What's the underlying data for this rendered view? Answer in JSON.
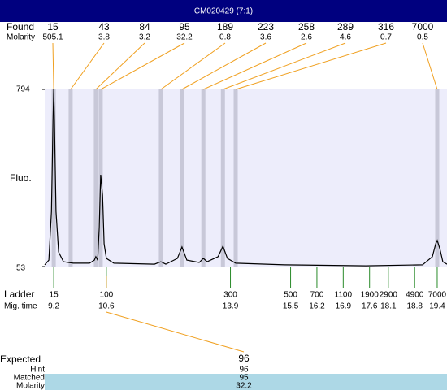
{
  "header": {
    "title": "CM020429 (7:1)"
  },
  "chart_data": {
    "type": "electropherogram",
    "y_label": "Fluo.",
    "xlim": [
      8.96,
      19.66
    ],
    "ylim": [
      53,
      794
    ],
    "yticks": [
      53,
      794
    ],
    "trace": {
      "color": "#000000",
      "x": [
        8.96,
        9.07,
        9.14,
        9.18,
        9.2,
        9.22,
        9.26,
        9.33,
        9.46,
        9.72,
        10.15,
        10.28,
        10.32,
        10.37,
        10.41,
        10.45,
        10.5,
        10.54,
        10.6,
        10.8,
        11.88,
        12.05,
        12.18,
        12.49,
        12.61,
        12.74,
        13.07,
        13.18,
        13.28,
        13.57,
        13.7,
        13.82,
        14.04,
        15.34,
        17.5,
        19.01,
        19.27,
        19.36,
        19.4,
        19.47,
        19.55,
        19.66
      ],
      "y": [
        60,
        80,
        284,
        658,
        794,
        658,
        284,
        114,
        73,
        67,
        67,
        80,
        94,
        80,
        216,
        437,
        352,
        148,
        87,
        67,
        63,
        73,
        63,
        87,
        135,
        80,
        70,
        87,
        73,
        94,
        138,
        87,
        67,
        60,
        56,
        60,
        94,
        148,
        162,
        128,
        73,
        63
      ]
    },
    "found": {
      "label": "Found",
      "molarity_label": "Molarity",
      "sizes": [
        15,
        43,
        84,
        95,
        189,
        223,
        258,
        289,
        316,
        7000
      ],
      "molarity": [
        505.1,
        3.8,
        3.2,
        32.2,
        0.8,
        3.6,
        2.6,
        4.6,
        0.7,
        0.5
      ],
      "times": [
        9.2,
        9.65,
        10.32,
        10.45,
        12.05,
        12.61,
        13.18,
        13.7,
        14.04,
        19.4
      ]
    },
    "ladder": {
      "label": "Ladder",
      "time_label": "Mig. time",
      "sizes": [
        15,
        100,
        300,
        500,
        700,
        1100,
        1900,
        2900,
        4900,
        7000
      ],
      "times": [
        9.2,
        10.6,
        13.9,
        15.5,
        16.2,
        16.9,
        17.6,
        18.1,
        18.8,
        19.4
      ]
    },
    "expected": {
      "label": "Expected",
      "hint_label": "Hint",
      "matched_label": "Matched",
      "molarity_label": "Molarity",
      "expected": 96,
      "hint": 96,
      "matched": 95,
      "molarity": 32.2
    }
  }
}
